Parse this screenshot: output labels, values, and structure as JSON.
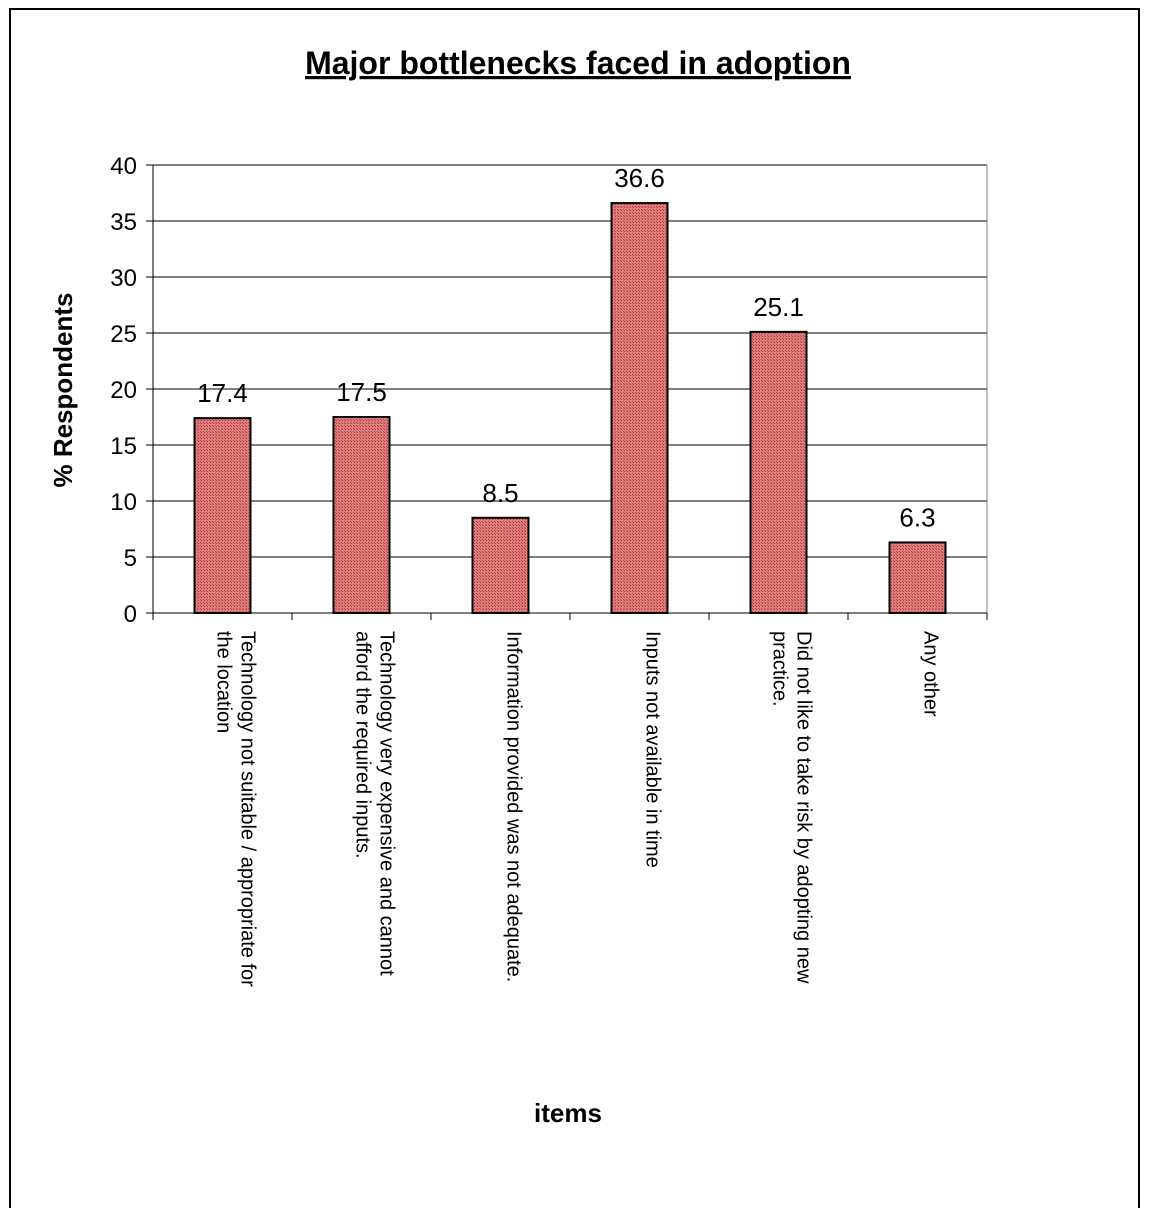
{
  "chart_data": {
    "type": "bar",
    "title": "Major bottlenecks faced in adoption",
    "xlabel": "items",
    "ylabel": "% Respondents",
    "ylim": [
      0,
      40
    ],
    "yticks": [
      0,
      5,
      10,
      15,
      20,
      25,
      30,
      35,
      40
    ],
    "grid": true,
    "categories": [
      [
        "Technology not suitable / appropriate for",
        "the location"
      ],
      [
        "Technology very expensive and cannot",
        "afford the required inputs."
      ],
      [
        "Information provided was not adequate."
      ],
      [
        "Inputs not available in time"
      ],
      [
        "Did not like to take risk by adopting new",
        "practice."
      ],
      [
        "Any other"
      ]
    ],
    "values": [
      17.4,
      17.5,
      8.5,
      36.6,
      25.1,
      6.3
    ],
    "data_labels": [
      "17.4",
      "17.5",
      "8.5",
      "36.6",
      "25.1",
      "6.3"
    ],
    "bar_color": "#c0504d"
  }
}
